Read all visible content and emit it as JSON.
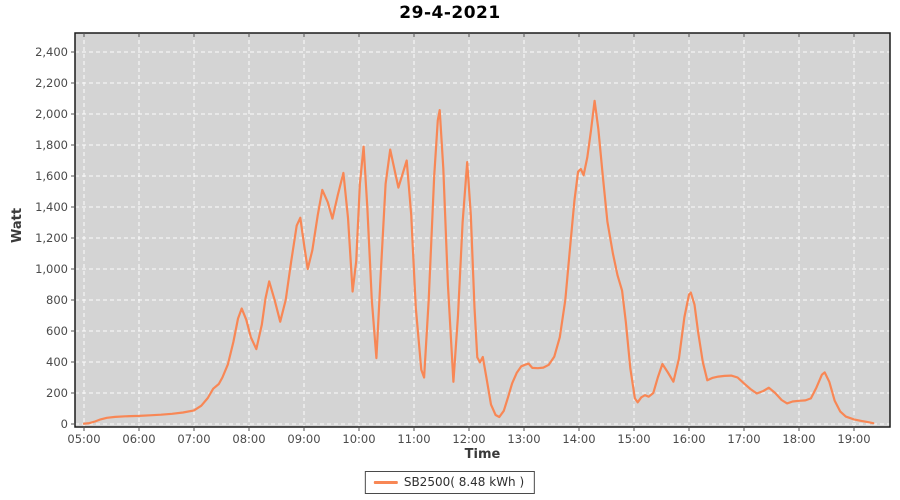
{
  "window": {
    "background": "#FFFFFF"
  },
  "chart_data": {
    "type": "line",
    "title": "29-4-2021",
    "xlabel": "Time",
    "ylabel": "Watt",
    "grid": {
      "show": true,
      "color": "#FFFFFF",
      "style": "dashed"
    },
    "plot_background": "#D4D4D4",
    "ylim": [
      0,
      2500
    ],
    "x_range_hours": [
      4.84,
      19.65
    ],
    "x_ticks": [
      "05:00",
      "06:00",
      "07:00",
      "08:00",
      "09:00",
      "10:00",
      "11:00",
      "12:00",
      "13:00",
      "14:00",
      "15:00",
      "16:00",
      "17:00",
      "18:00",
      "19:00"
    ],
    "y_ticks": [
      {
        "value": 0,
        "label": "0"
      },
      {
        "value": 200,
        "label": "200"
      },
      {
        "value": 400,
        "label": "400"
      },
      {
        "value": 600,
        "label": "600"
      },
      {
        "value": 800,
        "label": "800"
      },
      {
        "value": 1000,
        "label": "1,000"
      },
      {
        "value": 1200,
        "label": "1,200"
      },
      {
        "value": 1400,
        "label": "1,400"
      },
      {
        "value": 1600,
        "label": "1,600"
      },
      {
        "value": 1800,
        "label": "1,800"
      },
      {
        "value": 2000,
        "label": "2,000"
      },
      {
        "value": 2200,
        "label": "2,200"
      },
      {
        "value": 2400,
        "label": "2,400"
      }
    ],
    "legend": {
      "position": "bottom-center",
      "entries": [
        {
          "label": "SB2500( 8.48 kWh )",
          "color": "#F88755"
        }
      ]
    },
    "series": [
      {
        "name": "SB2500",
        "energy_total": "8.48 kWh",
        "color": "#F88755",
        "points": [
          [
            "05:00",
            2
          ],
          [
            "05:06",
            6
          ],
          [
            "05:12",
            16
          ],
          [
            "05:18",
            30
          ],
          [
            "05:25",
            40
          ],
          [
            "05:34",
            46
          ],
          [
            "05:45",
            50
          ],
          [
            "06:00",
            52
          ],
          [
            "06:12",
            56
          ],
          [
            "06:24",
            60
          ],
          [
            "06:36",
            66
          ],
          [
            "06:48",
            74
          ],
          [
            "07:00",
            88
          ],
          [
            "07:08",
            118
          ],
          [
            "07:15",
            168
          ],
          [
            "07:21",
            228
          ],
          [
            "07:27",
            258
          ],
          [
            "07:31",
            300
          ],
          [
            "07:37",
            385
          ],
          [
            "07:43",
            530
          ],
          [
            "07:48",
            680
          ],
          [
            "07:52",
            745
          ],
          [
            "07:57",
            672
          ],
          [
            "08:02",
            560
          ],
          [
            "08:08",
            483
          ],
          [
            "08:14",
            640
          ],
          [
            "08:18",
            810
          ],
          [
            "08:22",
            920
          ],
          [
            "08:28",
            798
          ],
          [
            "08:34",
            660
          ],
          [
            "08:40",
            800
          ],
          [
            "08:46",
            1050
          ],
          [
            "08:52",
            1280
          ],
          [
            "08:56",
            1330
          ],
          [
            "09:00",
            1160
          ],
          [
            "09:04",
            1000
          ],
          [
            "09:09",
            1120
          ],
          [
            "09:15",
            1350
          ],
          [
            "09:20",
            1510
          ],
          [
            "09:26",
            1430
          ],
          [
            "09:31",
            1325
          ],
          [
            "09:37",
            1480
          ],
          [
            "09:43",
            1620
          ],
          [
            "09:48",
            1330
          ],
          [
            "09:53",
            855
          ],
          [
            "09:57",
            1050
          ],
          [
            "10:01",
            1550
          ],
          [
            "10:05",
            1790
          ],
          [
            "10:09",
            1400
          ],
          [
            "10:14",
            800
          ],
          [
            "10:19",
            425
          ],
          [
            "10:24",
            1000
          ],
          [
            "10:29",
            1550
          ],
          [
            "10:34",
            1770
          ],
          [
            "10:43",
            1525
          ],
          [
            "10:52",
            1700
          ],
          [
            "10:57",
            1350
          ],
          [
            "11:02",
            750
          ],
          [
            "11:08",
            350
          ],
          [
            "11:11",
            300
          ],
          [
            "11:16",
            800
          ],
          [
            "11:22",
            1600
          ],
          [
            "11:26",
            1960
          ],
          [
            "11:28",
            2025
          ],
          [
            "11:32",
            1650
          ],
          [
            "11:37",
            900
          ],
          [
            "11:43",
            272
          ],
          [
            "11:48",
            700
          ],
          [
            "11:53",
            1300
          ],
          [
            "11:58",
            1690
          ],
          [
            "12:02",
            1350
          ],
          [
            "12:06",
            750
          ],
          [
            "12:09",
            430
          ],
          [
            "12:12",
            398
          ],
          [
            "12:15",
            432
          ],
          [
            "12:19",
            300
          ],
          [
            "12:24",
            125
          ],
          [
            "12:29",
            58
          ],
          [
            "12:33",
            45
          ],
          [
            "12:38",
            85
          ],
          [
            "12:43",
            180
          ],
          [
            "12:47",
            262
          ],
          [
            "12:52",
            330
          ],
          [
            "12:57",
            372
          ],
          [
            "13:01",
            382
          ],
          [
            "13:05",
            390
          ],
          [
            "13:09",
            362
          ],
          [
            "13:15",
            360
          ],
          [
            "13:21",
            364
          ],
          [
            "13:27",
            382
          ],
          [
            "13:33",
            435
          ],
          [
            "13:39",
            560
          ],
          [
            "13:45",
            800
          ],
          [
            "13:50",
            1120
          ],
          [
            "13:55",
            1440
          ],
          [
            "13:59",
            1628
          ],
          [
            "14:02",
            1645
          ],
          [
            "14:05",
            1605
          ],
          [
            "14:09",
            1720
          ],
          [
            "14:13",
            1890
          ],
          [
            "14:17",
            2085
          ],
          [
            "14:21",
            1905
          ],
          [
            "14:26",
            1600
          ],
          [
            "14:31",
            1305
          ],
          [
            "14:37",
            1100
          ],
          [
            "14:42",
            960
          ],
          [
            "14:47",
            860
          ],
          [
            "14:51",
            660
          ],
          [
            "14:56",
            360
          ],
          [
            "15:01",
            165
          ],
          [
            "15:04",
            140
          ],
          [
            "15:08",
            172
          ],
          [
            "15:12",
            186
          ],
          [
            "15:16",
            176
          ],
          [
            "15:21",
            200
          ],
          [
            "15:26",
            300
          ],
          [
            "15:31",
            387
          ],
          [
            "15:37",
            332
          ],
          [
            "15:43",
            273
          ],
          [
            "15:49",
            420
          ],
          [
            "15:55",
            690
          ],
          [
            "16:00",
            835
          ],
          [
            "16:02",
            848
          ],
          [
            "16:06",
            770
          ],
          [
            "16:10",
            590
          ],
          [
            "16:15",
            400
          ],
          [
            "16:20",
            282
          ],
          [
            "16:26",
            298
          ],
          [
            "16:32",
            306
          ],
          [
            "16:39",
            310
          ],
          [
            "16:46",
            312
          ],
          [
            "16:53",
            300
          ],
          [
            "17:00",
            262
          ],
          [
            "17:07",
            226
          ],
          [
            "17:14",
            197
          ],
          [
            "17:21",
            213
          ],
          [
            "17:27",
            234
          ],
          [
            "17:34",
            200
          ],
          [
            "17:41",
            155
          ],
          [
            "17:47",
            133
          ],
          [
            "17:53",
            145
          ],
          [
            "18:00",
            150
          ],
          [
            "18:07",
            152
          ],
          [
            "18:13",
            165
          ],
          [
            "18:19",
            235
          ],
          [
            "18:25",
            318
          ],
          [
            "18:28",
            333
          ],
          [
            "18:33",
            272
          ],
          [
            "18:39",
            150
          ],
          [
            "18:45",
            80
          ],
          [
            "18:51",
            48
          ],
          [
            "19:00",
            30
          ],
          [
            "19:08",
            20
          ],
          [
            "19:15",
            12
          ],
          [
            "19:21",
            5
          ]
        ]
      }
    ],
    "colors": {
      "axis_text": "#4A4A4A",
      "axis_title": "#3A3A3A",
      "title_text": "#000000",
      "plot_border": "#1B1B1B",
      "tick_mark": "#555555",
      "legend_border": "#4A4A4A"
    }
  }
}
